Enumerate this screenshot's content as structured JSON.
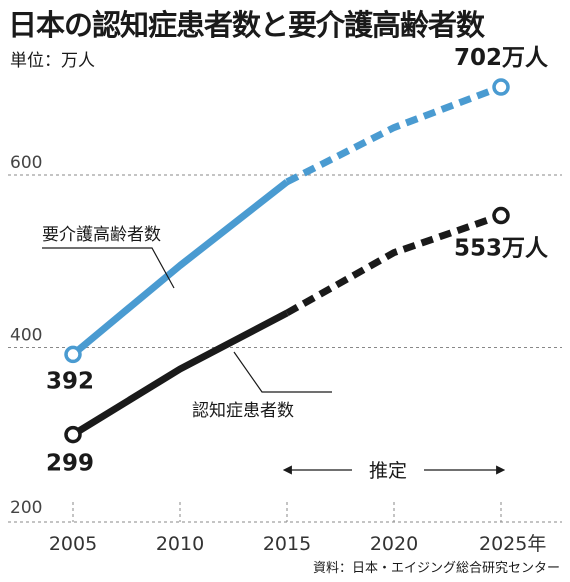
{
  "header": {
    "title": "日本の認知症患者数と要介護高齢者数",
    "unit": "単位：万人"
  },
  "source": "資料：日本・エイジング総合研究センター",
  "colors": {
    "care": "#4a9bd1",
    "dementia": "#1a1a1a",
    "grid": "#888888"
  },
  "chart_data": {
    "type": "line",
    "x_ticks": [
      "2005",
      "2010",
      "2015",
      "2020",
      "2025年"
    ],
    "y_ticks": [
      "200",
      "400",
      "600"
    ],
    "xlim": [
      2005,
      2025
    ],
    "ylim": [
      200,
      760
    ],
    "estimate_start": 2015,
    "estimate_label": "推定",
    "series": [
      {
        "name": "要介護高齢者数",
        "color": "#4a9bd1",
        "x": [
          2005,
          2010,
          2015,
          2020,
          2025
        ],
        "y": [
          392,
          495,
          592,
          655,
          702
        ],
        "start_label": "392",
        "end_label": "702万人"
      },
      {
        "name": "認知症患者数",
        "color": "#1a1a1a",
        "x": [
          2005,
          2010,
          2015,
          2020,
          2025
        ],
        "y": [
          299,
          375,
          440,
          510,
          553
        ],
        "start_label": "299",
        "end_label": "553万人"
      }
    ]
  }
}
